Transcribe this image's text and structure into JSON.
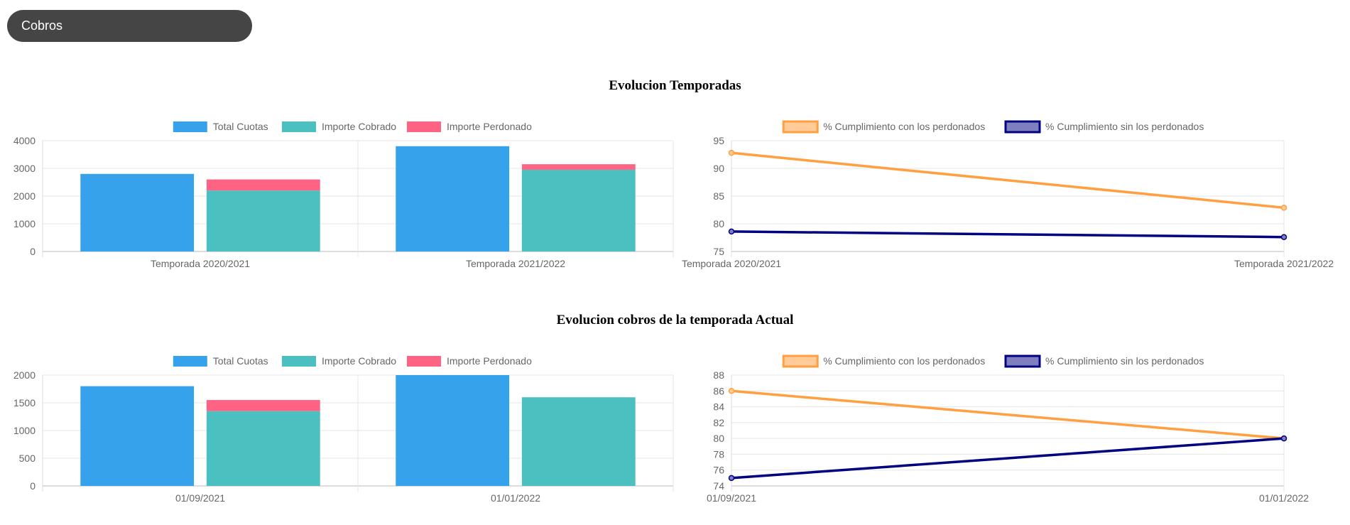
{
  "header": {
    "title": "Cobros"
  },
  "sections": [
    {
      "title": "Evolucion Temporadas"
    },
    {
      "title": "Evolucion cobros de la temporada Actual"
    }
  ],
  "colors": {
    "total": "#36a2eb",
    "cobrado": "#4bc0c0",
    "perdonado": "#ff6384",
    "con_line": "#ff9f40",
    "con_fill": "#ffcc99",
    "sin_line": "#000080",
    "sin_fill": "#7f7fbf"
  },
  "chart_data": [
    {
      "id": "bar1",
      "type": "bar",
      "categories": [
        "Temporada 2020/2021",
        "Temporada 2021/2022"
      ],
      "series": [
        {
          "name": "Total Cuotas",
          "values": [
            2800,
            3800
          ],
          "stack": "a"
        },
        {
          "name": "Importe Cobrado",
          "values": [
            2200,
            2950
          ],
          "stack": "b"
        },
        {
          "name": "Importe Perdonado",
          "values": [
            400,
            200
          ],
          "stack": "b"
        }
      ],
      "ylim": [
        0,
        4000
      ],
      "yticks": [
        0,
        1000,
        2000,
        3000,
        4000
      ],
      "legend": "top",
      "grid": true
    },
    {
      "id": "line1",
      "type": "line",
      "categories": [
        "Temporada 2020/2021",
        "Temporada 2021/2022"
      ],
      "series": [
        {
          "name": "% Cumplimiento con los perdonados",
          "values": [
            92.8,
            82.9
          ]
        },
        {
          "name": "% Cumplimiento sin los perdonados",
          "values": [
            78.6,
            77.6
          ]
        }
      ],
      "ylim": [
        75,
        95
      ],
      "yticks": [
        75,
        80,
        85,
        90,
        95
      ],
      "legend": "top",
      "grid": true
    },
    {
      "id": "bar2",
      "type": "bar",
      "categories": [
        "01/09/2021",
        "01/01/2022"
      ],
      "series": [
        {
          "name": "Total Cuotas",
          "values": [
            1800,
            2000
          ],
          "stack": "a"
        },
        {
          "name": "Importe Cobrado",
          "values": [
            1350,
            1600
          ],
          "stack": "b"
        },
        {
          "name": "Importe Perdonado",
          "values": [
            200,
            0
          ],
          "stack": "b"
        }
      ],
      "ylim": [
        0,
        2000
      ],
      "yticks": [
        0,
        500,
        1000,
        1500,
        2000
      ],
      "legend": "top",
      "grid": true
    },
    {
      "id": "line2",
      "type": "line",
      "categories": [
        "01/09/2021",
        "01/01/2022"
      ],
      "series": [
        {
          "name": "% Cumplimiento con los perdonados",
          "values": [
            86,
            80
          ]
        },
        {
          "name": "% Cumplimiento sin los perdonados",
          "values": [
            75,
            80
          ]
        }
      ],
      "ylim": [
        74,
        88
      ],
      "yticks": [
        74,
        76,
        78,
        80,
        82,
        84,
        86,
        88
      ],
      "legend": "top",
      "grid": true
    }
  ]
}
